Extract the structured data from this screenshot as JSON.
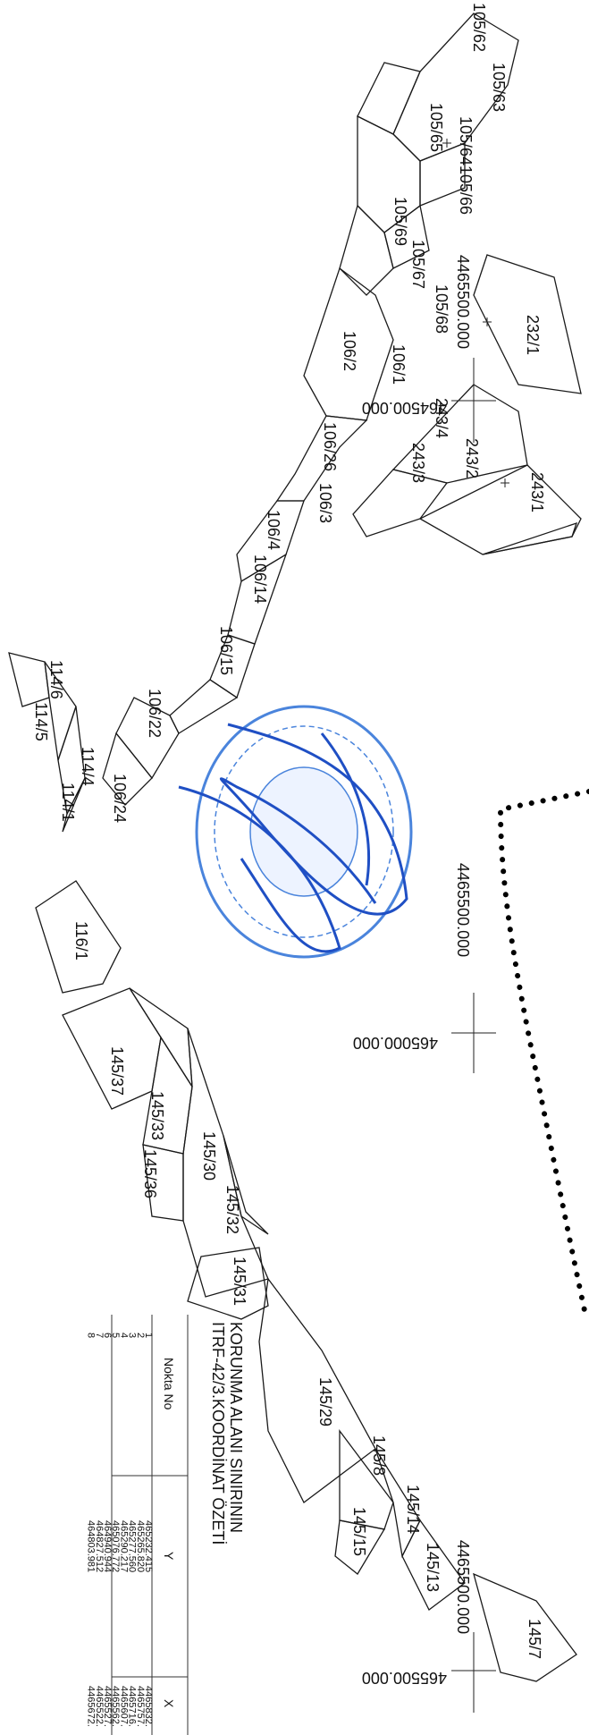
{
  "parcels": [
    "105/62",
    "105/63",
    "105/65",
    "105/64",
    "105/66",
    "105/69",
    "105/67",
    "105/68",
    "232/1",
    "106/2",
    "106/1",
    "243/4",
    "243/3",
    "243/2",
    "243/1",
    "106/26",
    "106/3",
    "106/4",
    "106/14",
    "106/15",
    "106/22",
    "106/24",
    "114/6",
    "114/5",
    "114/4",
    "114/1",
    "116/1",
    "145/37",
    "145/33",
    "145/36",
    "145/30",
    "145/32",
    "145/31",
    "145/29",
    "145/8",
    "145/14",
    "145/15",
    "145/13",
    "145/7"
  ],
  "grid_coords": {
    "x_top": "4465500.000",
    "y_top": "464500.000",
    "x_mid": "4465500.000",
    "y_mid": "465000.000",
    "x_bot": "4465500.000",
    "y_bot": "465500.000"
  },
  "table": {
    "title_line1": "KORUNMA ALANI SINIRININ",
    "title_line2": "ITRF-42/3.KOORDİNAT ÖZETİ",
    "col_no": "Nokta No",
    "col_y": "Y",
    "col_x": "X",
    "rows": [
      {
        "no": "1",
        "y": "465232.415",
        "x": "4465832."
      },
      {
        "no": "2",
        "y": "465265.820",
        "x": "4465757."
      },
      {
        "no": "3",
        "y": "465277.560",
        "x": "4465716."
      },
      {
        "no": "4",
        "y": "465290.217",
        "x": "4465607."
      },
      {
        "no": "5",
        "y": "465076.772",
        "x": "4465562."
      },
      {
        "no": "6",
        "y": "464940.944",
        "x": "4465527."
      },
      {
        "no": "7",
        "y": "464827.512",
        "x": "4465522."
      },
      {
        "no": "8",
        "y": "464803.981",
        "x": "4465672."
      }
    ]
  },
  "colors": {
    "stamp": "#2b6fd6",
    "signature": "#1f4fc4",
    "line": "#1a1a1a"
  }
}
